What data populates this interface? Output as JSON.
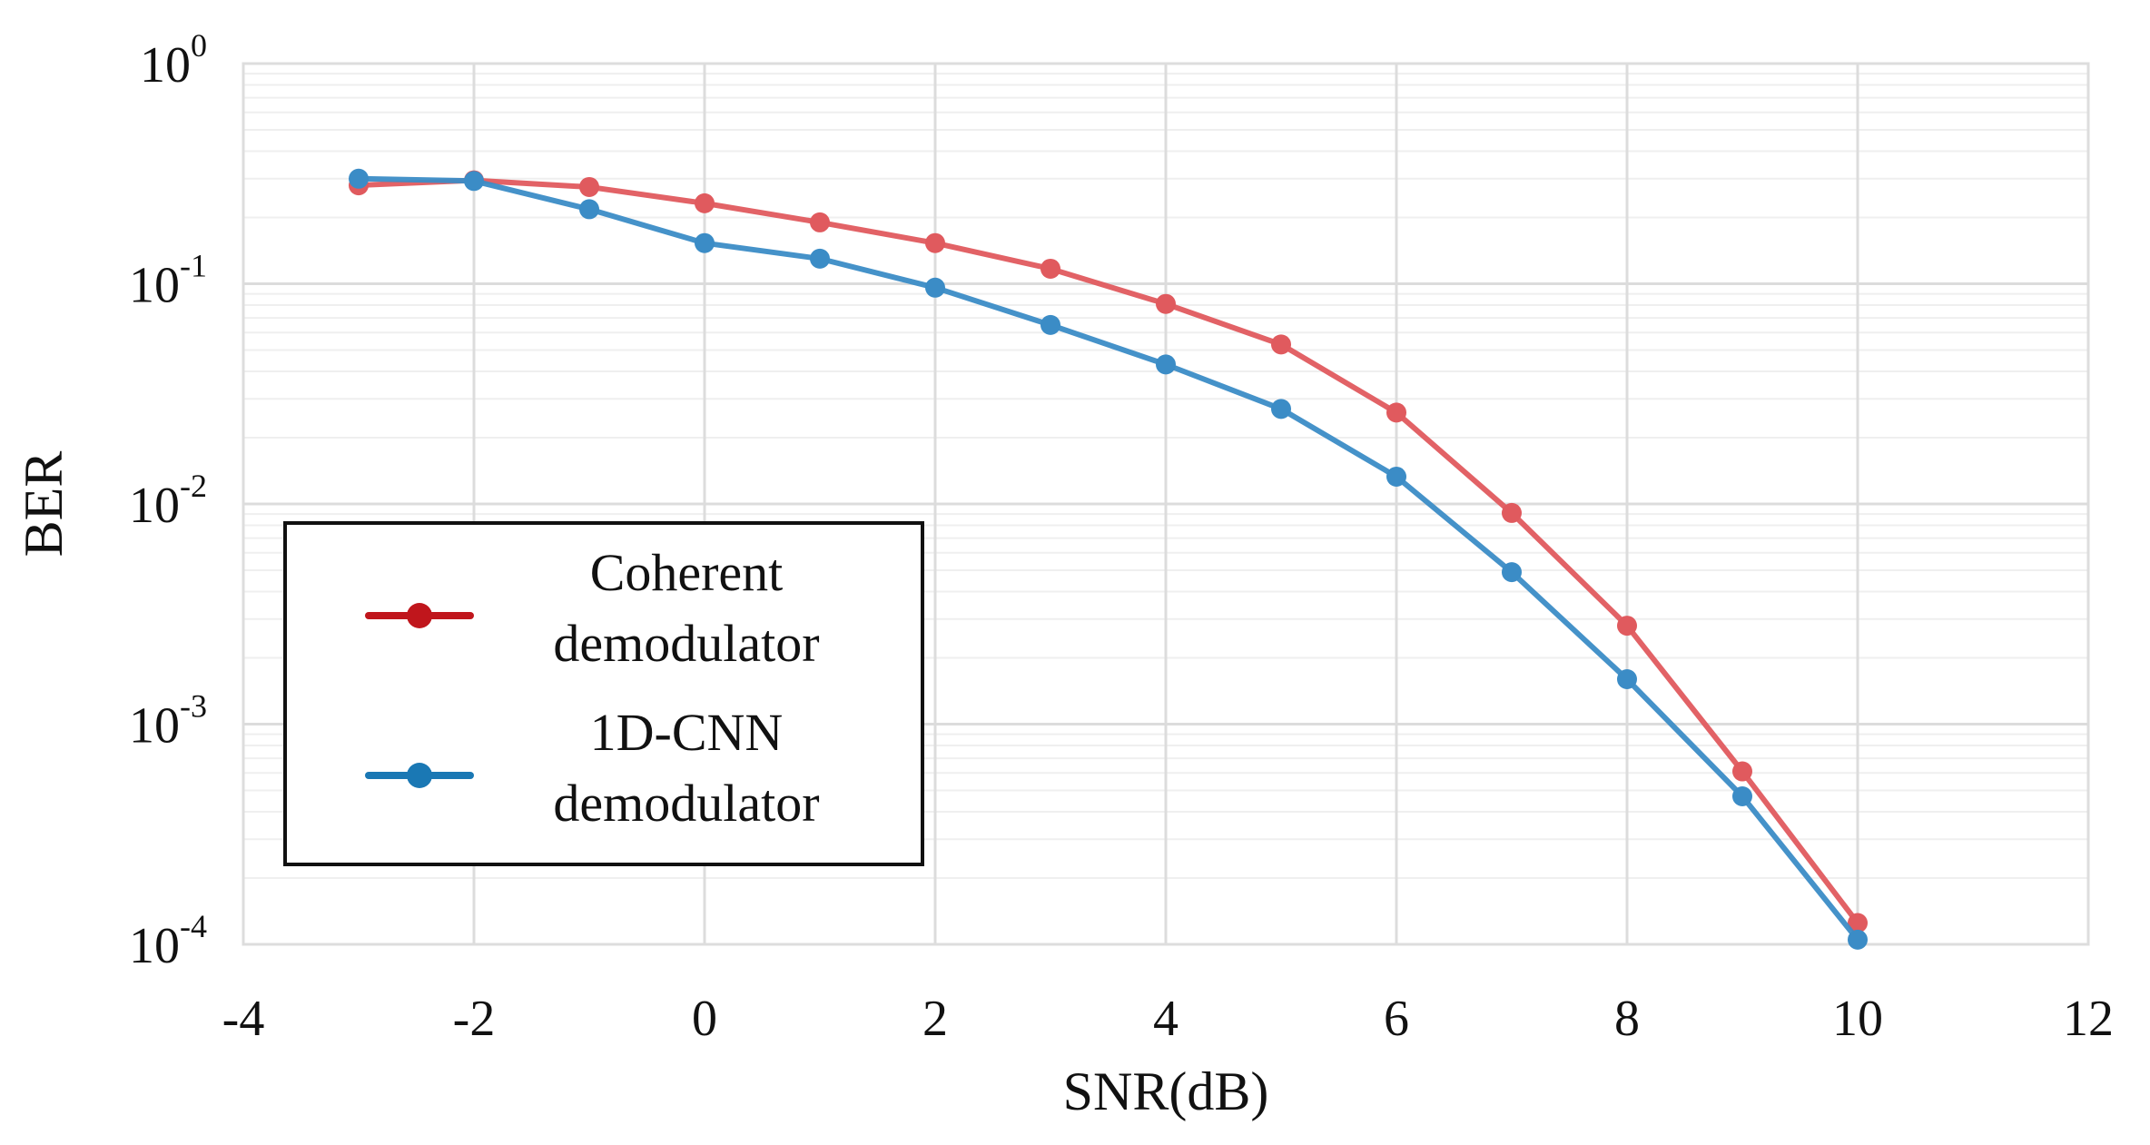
{
  "chart_data": {
    "type": "line",
    "title": "",
    "xlabel": "SNR(dB)",
    "ylabel": "BER",
    "xlim": [
      -4,
      12
    ],
    "ylim": [
      0.0001,
      1
    ],
    "yscale": "log",
    "grid": true,
    "legend_position": "center-left",
    "x_ticks": [
      "-4",
      "-2",
      "0",
      "2",
      "4",
      "6",
      "8",
      "10",
      "12"
    ],
    "y_ticks": [
      {
        "base": "10",
        "exp": "0"
      },
      {
        "base": "10",
        "exp": "-1"
      },
      {
        "base": "10",
        "exp": "-2"
      },
      {
        "base": "10",
        "exp": "-3"
      },
      {
        "base": "10",
        "exp": "-4"
      }
    ],
    "x": [
      -3,
      -2,
      -1,
      0,
      1,
      2,
      3,
      4,
      5,
      6,
      7,
      8,
      9,
      10
    ],
    "series": [
      {
        "name": "Coherent demodulator",
        "legend_lines": [
          "Coherent",
          "demodulator"
        ],
        "color": "#e05a5e",
        "legend_color": "#c0161c",
        "values": [
          0.28,
          0.295,
          0.275,
          0.232,
          0.19,
          0.153,
          0.117,
          0.081,
          0.053,
          0.026,
          0.0091,
          0.0028,
          0.00061,
          0.000125
        ]
      },
      {
        "name": "1D-CNN demodulator",
        "legend_lines": [
          "1D-CNN",
          "demodulator"
        ],
        "color": "#3b8cc6",
        "legend_color": "#1a78b4",
        "values": [
          0.3,
          0.293,
          0.218,
          0.153,
          0.13,
          0.096,
          0.065,
          0.043,
          0.027,
          0.0133,
          0.0049,
          0.0016,
          0.00047,
          0.000105
        ]
      }
    ]
  }
}
